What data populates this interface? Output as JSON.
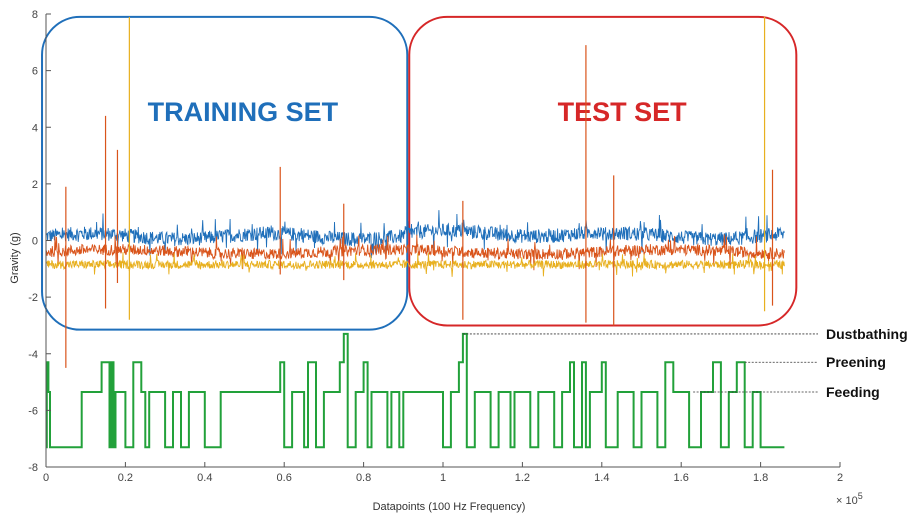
{
  "chart_data": {
    "type": "line",
    "xlabel": "Datapoints (100 Hz Frequency)",
    "ylabel": "Gravity (g)",
    "x_exponent_label": "× 10",
    "x_exponent_power": "5",
    "xlim": [
      0,
      2
    ],
    "ylim": [
      -8,
      8
    ],
    "x_ticks": [
      0,
      0.2,
      0.4,
      0.6,
      0.8,
      1,
      1.2,
      1.4,
      1.6,
      1.8,
      2
    ],
    "x_tick_labels": [
      "0",
      "0.2",
      "0.4",
      "0.6",
      "0.8",
      "1",
      "1.2",
      "1.4",
      "1.6",
      "1.8",
      "2"
    ],
    "y_ticks": [
      -8,
      -6,
      -4,
      -2,
      0,
      2,
      4,
      6,
      8
    ],
    "y_tick_labels": [
      "-8",
      "-6",
      "-4",
      "-2",
      "0",
      "2",
      "4",
      "6",
      "8"
    ],
    "grid": false,
    "data_x_end": 1.86,
    "series_colors": [
      "#1f6fba",
      "#d9541b",
      "#e8b01f",
      "#22a13a"
    ],
    "accel_series": [
      {
        "color": "#1f6fba",
        "baseline": 0.15,
        "amplitude": 0.25
      },
      {
        "color": "#d9541b",
        "baseline": -0.4,
        "amplitude": 0.2
      },
      {
        "color": "#e8b01f",
        "baseline": -0.85,
        "amplitude": 0.15
      }
    ],
    "spikes": [
      {
        "x": 0.05,
        "y_min": -4.5,
        "y_max": 1.9,
        "color": "#d9541b"
      },
      {
        "x": 0.15,
        "y_min": -2.4,
        "y_max": 4.4,
        "color": "#d9541b"
      },
      {
        "x": 0.18,
        "y_min": -1.5,
        "y_max": 3.2,
        "color": "#d9541b"
      },
      {
        "x": 0.21,
        "y_min": -2.8,
        "y_max": 7.9,
        "color": "#e8b01f"
      },
      {
        "x": 0.59,
        "y_min": -1.2,
        "y_max": 2.6,
        "color": "#d9541b"
      },
      {
        "x": 0.75,
        "y_min": -1.4,
        "y_max": 1.3,
        "color": "#d9541b"
      },
      {
        "x": 1.05,
        "y_min": -2.8,
        "y_max": 1.4,
        "color": "#d9541b"
      },
      {
        "x": 1.36,
        "y_min": -2.9,
        "y_max": 6.9,
        "color": "#d9541b"
      },
      {
        "x": 1.43,
        "y_min": -3.0,
        "y_max": 2.3,
        "color": "#d9541b"
      },
      {
        "x": 1.81,
        "y_min": -2.5,
        "y_max": 7.9,
        "color": "#e8b01f"
      },
      {
        "x": 1.83,
        "y_min": -2.3,
        "y_max": 2.5,
        "color": "#d9541b"
      }
    ],
    "behavior_series": {
      "color": "#22a13a",
      "levels": {
        "base": -7.3,
        "feeding": -5.35,
        "preening": -4.3,
        "dustbathing": -3.3
      },
      "steps": [
        [
          0,
          -7.3
        ],
        [
          0.002,
          -4.3
        ],
        [
          0.006,
          -5.35
        ],
        [
          0.01,
          -7.3
        ],
        [
          0.09,
          -5.35
        ],
        [
          0.14,
          -4.3
        ],
        [
          0.16,
          -7.3
        ],
        [
          0.165,
          -4.3
        ],
        [
          0.17,
          -7.3
        ],
        [
          0.175,
          -5.35
        ],
        [
          0.2,
          -7.3
        ],
        [
          0.22,
          -4.3
        ],
        [
          0.24,
          -5.35
        ],
        [
          0.25,
          -7.3
        ],
        [
          0.26,
          -5.35
        ],
        [
          0.3,
          -7.3
        ],
        [
          0.32,
          -5.35
        ],
        [
          0.34,
          -7.3
        ],
        [
          0.36,
          -5.35
        ],
        [
          0.4,
          -7.3
        ],
        [
          0.44,
          -5.35
        ],
        [
          0.59,
          -4.3
        ],
        [
          0.6,
          -7.3
        ],
        [
          0.62,
          -5.35
        ],
        [
          0.65,
          -7.3
        ],
        [
          0.66,
          -4.3
        ],
        [
          0.68,
          -7.3
        ],
        [
          0.7,
          -5.35
        ],
        [
          0.74,
          -4.3
        ],
        [
          0.75,
          -3.3
        ],
        [
          0.76,
          -7.3
        ],
        [
          0.78,
          -5.35
        ],
        [
          0.8,
          -4.3
        ],
        [
          0.81,
          -7.3
        ],
        [
          0.82,
          -5.35
        ],
        [
          0.86,
          -7.3
        ],
        [
          0.87,
          -5.35
        ],
        [
          0.89,
          -7.3
        ],
        [
          0.9,
          -5.35
        ],
        [
          1.0,
          -7.3
        ],
        [
          1.02,
          -5.35
        ],
        [
          1.04,
          -4.3
        ],
        [
          1.05,
          -3.3
        ],
        [
          1.06,
          -7.3
        ],
        [
          1.08,
          -5.35
        ],
        [
          1.12,
          -7.3
        ],
        [
          1.14,
          -5.35
        ],
        [
          1.17,
          -7.3
        ],
        [
          1.18,
          -5.35
        ],
        [
          1.22,
          -7.3
        ],
        [
          1.24,
          -5.35
        ],
        [
          1.28,
          -7.3
        ],
        [
          1.3,
          -5.35
        ],
        [
          1.32,
          -4.3
        ],
        [
          1.33,
          -7.3
        ],
        [
          1.35,
          -4.3
        ],
        [
          1.36,
          -7.3
        ],
        [
          1.37,
          -5.35
        ],
        [
          1.4,
          -4.3
        ],
        [
          1.41,
          -7.3
        ],
        [
          1.44,
          -5.35
        ],
        [
          1.48,
          -7.3
        ],
        [
          1.5,
          -5.35
        ],
        [
          1.54,
          -7.3
        ],
        [
          1.56,
          -4.3
        ],
        [
          1.58,
          -5.35
        ],
        [
          1.62,
          -7.3
        ],
        [
          1.65,
          -5.35
        ],
        [
          1.68,
          -4.3
        ],
        [
          1.7,
          -7.3
        ],
        [
          1.72,
          -5.35
        ],
        [
          1.74,
          -4.3
        ],
        [
          1.76,
          -7.3
        ],
        [
          1.78,
          -5.35
        ],
        [
          1.8,
          -7.3
        ],
        [
          1.86,
          -7.3
        ]
      ]
    },
    "regions": [
      {
        "label": "TRAINING SET",
        "color": "#1f6fba",
        "x0": -0.01,
        "x1": 0.91,
        "y0": -3.15,
        "y1": 7.9
      },
      {
        "label": "TEST SET",
        "color": "#d62728",
        "x0": 0.915,
        "x1": 1.89,
        "y0": -3.0,
        "y1": 7.9
      }
    ],
    "legend": [
      {
        "label": "Dustbathing",
        "y": -3.3,
        "x_start": 1.05
      },
      {
        "label": "Preening",
        "y": -4.3,
        "x_start": 1.76
      },
      {
        "label": "Feeding",
        "y": -5.35,
        "x_start": 1.63
      }
    ]
  }
}
